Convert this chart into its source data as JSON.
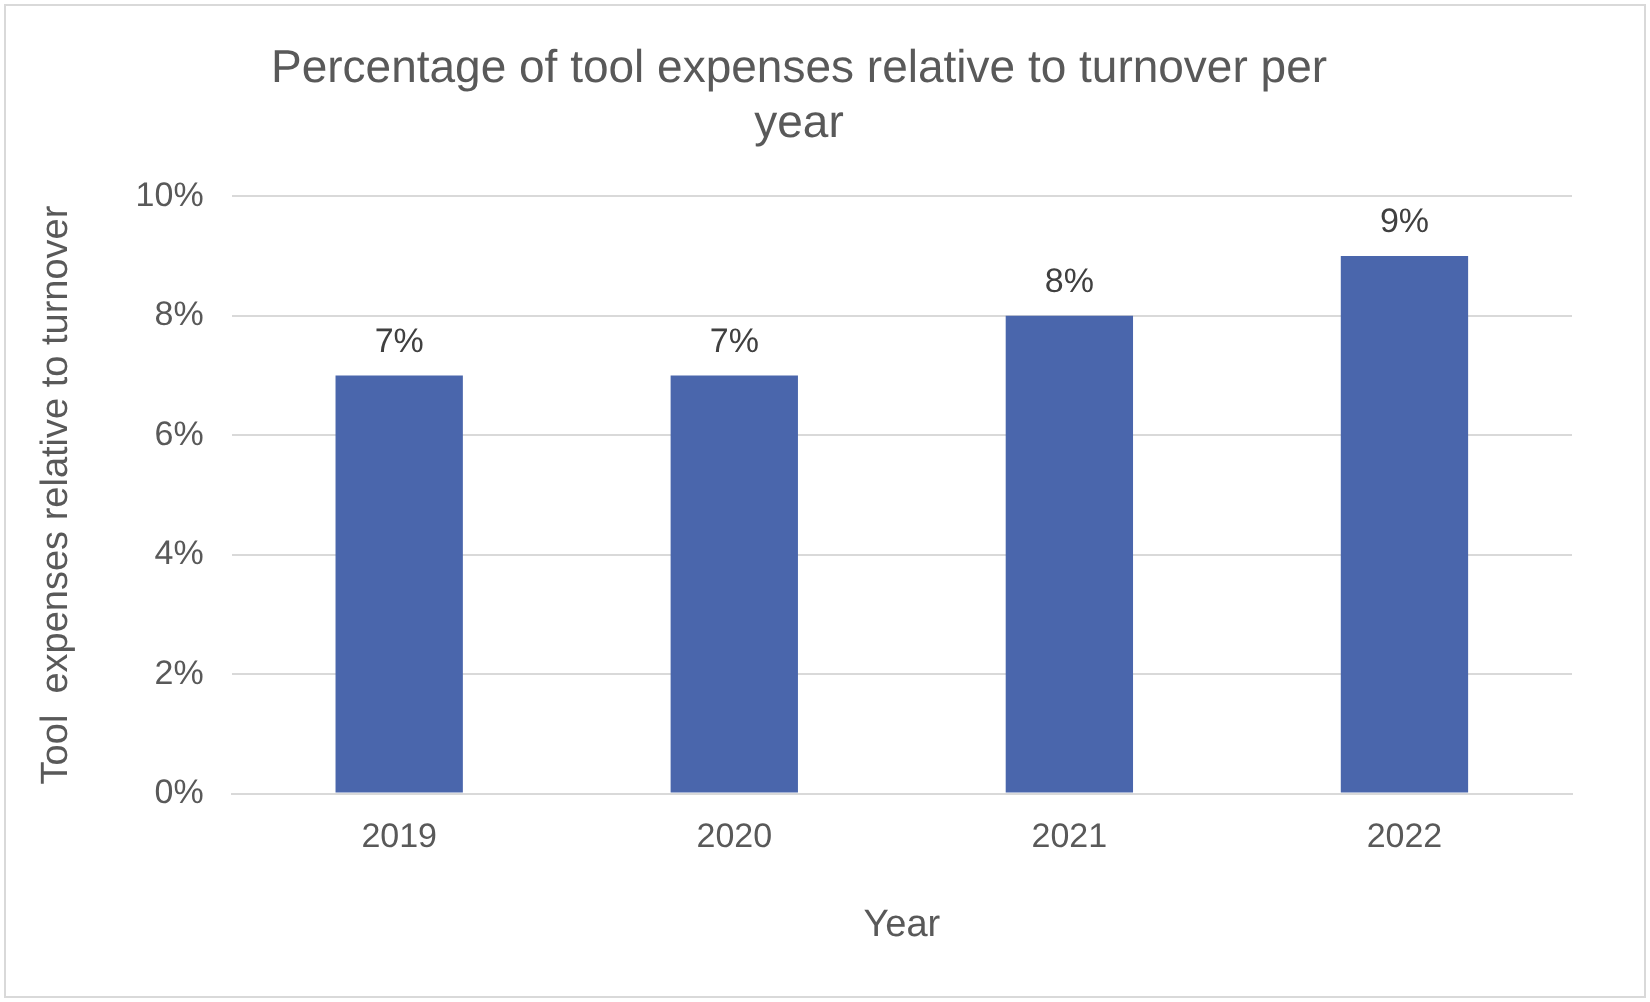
{
  "chart_data": {
    "type": "bar",
    "title": "Percentage of tool expenses relative to turnover per year",
    "xlabel": "Year",
    "ylabel": "Tool  expenses relative to turnover",
    "categories": [
      "2019",
      "2020",
      "2021",
      "2022"
    ],
    "values": [
      7,
      7,
      8,
      9
    ],
    "color": "#4a66ac",
    "value_labels": [
      "7%",
      "7%",
      "8%",
      "9%"
    ],
    "ylim": [
      0,
      10
    ],
    "yticks": [
      {
        "value": 0,
        "label": "0%"
      },
      {
        "value": 2,
        "label": "2%"
      },
      {
        "value": 4,
        "label": "4%"
      },
      {
        "value": 6,
        "label": "6%"
      },
      {
        "value": 8,
        "label": "8%"
      },
      {
        "value": 10,
        "label": "10%"
      }
    ],
    "grid": "y",
    "legend": false
  }
}
